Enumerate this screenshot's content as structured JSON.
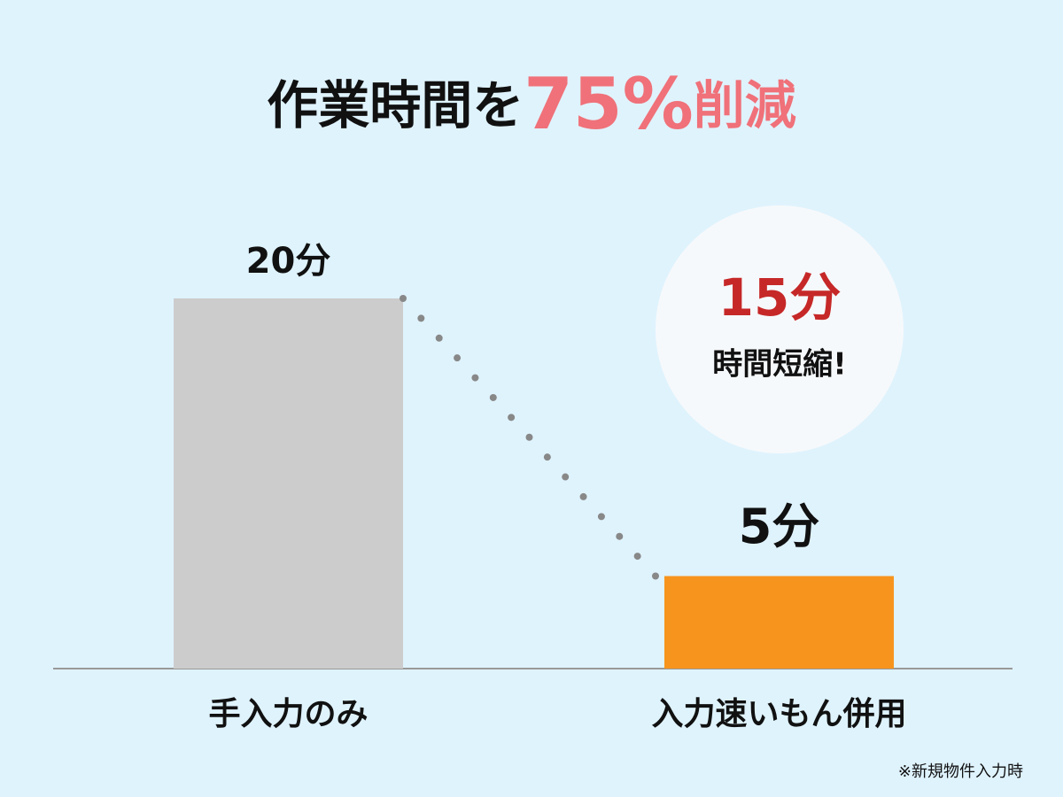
{
  "chart_data": {
    "type": "bar",
    "title": {
      "lead": "作業時間を",
      "highlight": "75%",
      "tail": "削減"
    },
    "categories": [
      "手入力のみ",
      "入力速いもん併用"
    ],
    "values": [
      20,
      5
    ],
    "value_labels": [
      "20分",
      "5分"
    ],
    "colors": [
      "#cccccc",
      "#f7941d"
    ],
    "category_label_colors": [
      "#111111",
      "#f7941d"
    ],
    "callout": {
      "amount": "15分",
      "text": "時間短縮!"
    },
    "note": "※新規物件入力時"
  }
}
